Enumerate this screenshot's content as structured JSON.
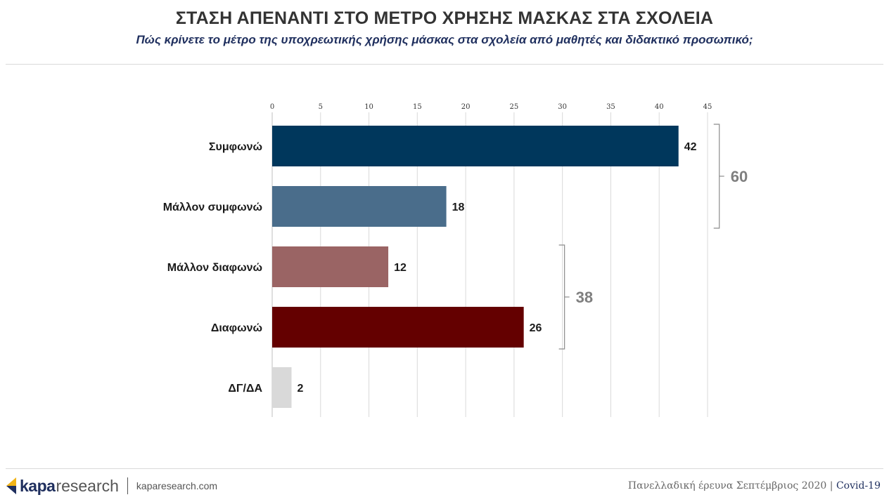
{
  "header": {
    "title": "ΣΤΑΣΗ ΑΠΕΝΑΝΤΙ ΣΤΟ ΜΕΤΡΟ ΧΡΗΣΗΣ ΜΑΣΚΑΣ ΣΤΑ ΣΧΟΛΕΙΑ",
    "subtitle": "Πώς κρίνετε το μέτρο της υποχρεωτικής χρήσης μάσκας στα σχολεία από μαθητές και διδακτικό προσωπικό;"
  },
  "chart_data": {
    "type": "bar",
    "orientation": "horizontal",
    "categories": [
      "Συμφωνώ",
      "Μάλλον συμφωνώ",
      "Μάλλον διαφωνώ",
      "Διαφωνώ",
      "ΔΓ/ΔΑ"
    ],
    "values": [
      42,
      18,
      12,
      26,
      2
    ],
    "colors": [
      "#00375c",
      "#4a6d8b",
      "#9a6464",
      "#640000",
      "#d9d9d9"
    ],
    "xlim": [
      0,
      45
    ],
    "ticks": [
      0,
      5,
      10,
      15,
      20,
      25,
      30,
      35,
      40,
      45
    ],
    "tick_labels": [
      "0",
      "5",
      "10",
      "15",
      "20",
      "25",
      "30",
      "35",
      "40",
      "45"
    ],
    "grid": true,
    "xaxis_position": "top",
    "groups": [
      {
        "label": "60",
        "categories": [
          "Συμφωνώ",
          "Μάλλον συμφωνώ"
        ],
        "total": 60
      },
      {
        "label": "38",
        "categories": [
          "Μάλλον διαφωνώ",
          "Διαφωνώ"
        ],
        "total": 38
      }
    ]
  },
  "footer": {
    "brand_bold": "kapa",
    "brand_light": "research",
    "url": "kaparesearch.com",
    "survey": "Πανελλαδική έρευνα Σεπτέμβριος 2020 |",
    "tag": "Covid-19"
  }
}
